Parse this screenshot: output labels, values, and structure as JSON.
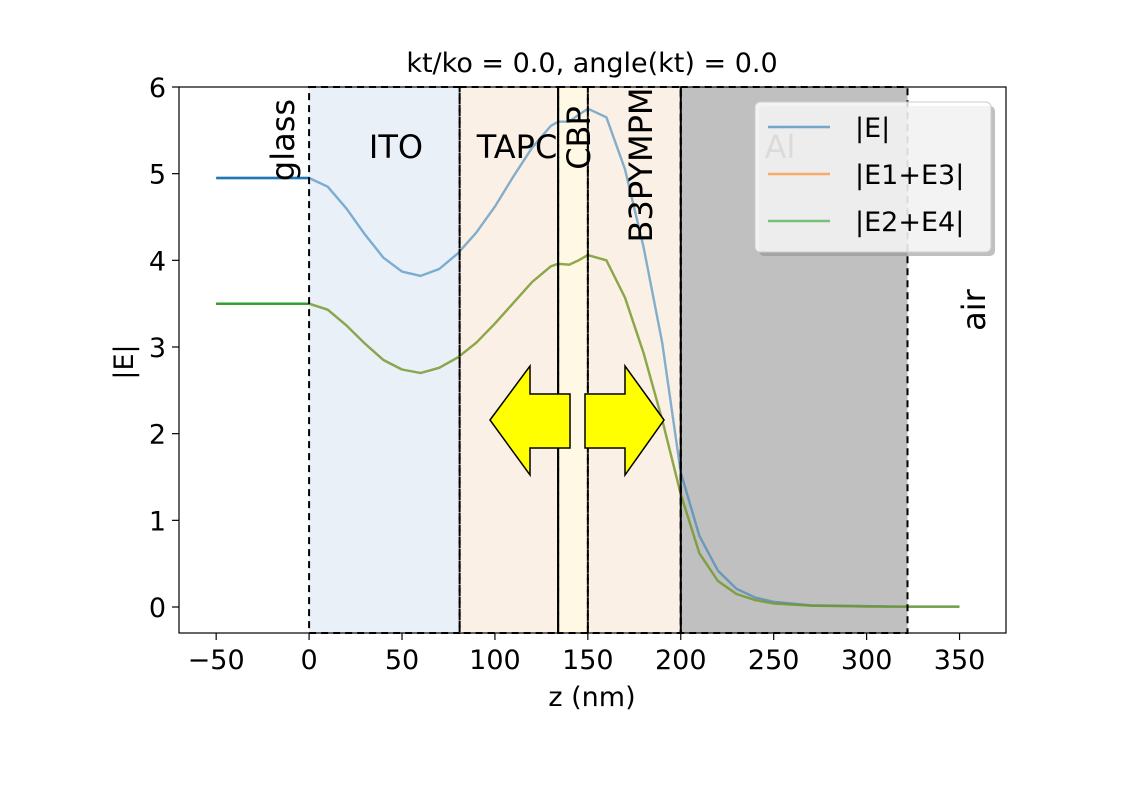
{
  "chart_data": {
    "type": "line",
    "title": "kt/ko = 0.0, angle(kt) = 0.0",
    "xlabel": "z (nm)",
    "ylabel": "|E|",
    "xlim": [
      -70,
      375
    ],
    "ylim": [
      -0.3,
      6.0
    ],
    "xticks": [
      -50,
      0,
      50,
      100,
      150,
      200,
      250,
      300,
      350
    ],
    "xtick_labels": [
      "−50",
      "0",
      "50",
      "100",
      "150",
      "200",
      "250",
      "300",
      "350"
    ],
    "yticks": [
      0,
      1,
      2,
      3,
      4,
      5,
      6
    ],
    "ytick_labels": [
      "0",
      "1",
      "2",
      "3",
      "4",
      "5",
      "6"
    ],
    "grid": false,
    "legend": "top-right",
    "layers": [
      {
        "name": "glass",
        "z_start": null,
        "z_end": 0,
        "color": null,
        "label_rotated": true
      },
      {
        "name": "ITO",
        "z_start": 0,
        "z_end": 81,
        "color": "#eaf0f8",
        "label_rotated": false
      },
      {
        "name": "TAPC",
        "z_start": 81,
        "z_end": 134,
        "color": "#fbf0e6",
        "label_rotated": false
      },
      {
        "name": "CBP",
        "z_start": 134,
        "z_end": 150,
        "color": "#fff8e4",
        "label_rotated": true
      },
      {
        "name": "B3PYMPM",
        "z_start": 150,
        "z_end": 200,
        "color": "#fbf0e6",
        "label_rotated": true
      },
      {
        "name": "Al",
        "z_start": 200,
        "z_end": 322,
        "color": "#c0c0c0",
        "label_rotated": false
      },
      {
        "name": "air",
        "z_start": 322,
        "z_end": null,
        "color": null,
        "label_rotated": true
      }
    ],
    "series": [
      {
        "name": "|E|",
        "color": "#1f77b4",
        "points": [
          [
            -50,
            4.95
          ],
          [
            -20,
            4.95
          ],
          [
            0,
            4.95
          ],
          [
            10,
            4.85
          ],
          [
            20,
            4.6
          ],
          [
            30,
            4.3
          ],
          [
            40,
            4.03
          ],
          [
            50,
            3.87
          ],
          [
            60,
            3.82
          ],
          [
            70,
            3.9
          ],
          [
            80,
            4.08
          ],
          [
            90,
            4.32
          ],
          [
            100,
            4.62
          ],
          [
            110,
            4.97
          ],
          [
            120,
            5.3
          ],
          [
            130,
            5.55
          ],
          [
            134,
            5.6
          ],
          [
            140,
            5.6
          ],
          [
            145,
            5.68
          ],
          [
            150,
            5.75
          ],
          [
            160,
            5.65
          ],
          [
            170,
            5.05
          ],
          [
            180,
            4.15
          ],
          [
            190,
            3.05
          ],
          [
            200,
            1.55
          ],
          [
            210,
            0.82
          ],
          [
            220,
            0.42
          ],
          [
            230,
            0.21
          ],
          [
            240,
            0.11
          ],
          [
            250,
            0.06
          ],
          [
            270,
            0.02
          ],
          [
            300,
            0.01
          ],
          [
            320,
            0.005
          ],
          [
            350,
            0.005
          ]
        ]
      },
      {
        "name": "|E1+E3|",
        "color": "#ff7f0e",
        "points": [
          [
            -50,
            3.5
          ],
          [
            -20,
            3.5
          ],
          [
            0,
            3.5
          ],
          [
            10,
            3.43
          ],
          [
            20,
            3.25
          ],
          [
            30,
            3.04
          ],
          [
            40,
            2.85
          ],
          [
            50,
            2.74
          ],
          [
            60,
            2.7
          ],
          [
            70,
            2.76
          ],
          [
            80,
            2.88
          ],
          [
            90,
            3.05
          ],
          [
            100,
            3.27
          ],
          [
            110,
            3.51
          ],
          [
            120,
            3.75
          ],
          [
            130,
            3.93
          ],
          [
            134,
            3.96
          ],
          [
            140,
            3.95
          ],
          [
            145,
            4.0
          ],
          [
            150,
            4.06
          ],
          [
            160,
            4.0
          ],
          [
            170,
            3.57
          ],
          [
            180,
            2.93
          ],
          [
            190,
            2.16
          ],
          [
            200,
            1.3
          ],
          [
            210,
            0.62
          ],
          [
            220,
            0.3
          ],
          [
            230,
            0.15
          ],
          [
            240,
            0.08
          ],
          [
            250,
            0.04
          ],
          [
            270,
            0.015
          ],
          [
            300,
            0.005
          ],
          [
            320,
            0.003
          ],
          [
            350,
            0.003
          ]
        ]
      },
      {
        "name": "|E2+E4|",
        "color": "#2ca02c",
        "points": [
          [
            -50,
            3.5
          ],
          [
            -20,
            3.5
          ],
          [
            0,
            3.5
          ],
          [
            10,
            3.43
          ],
          [
            20,
            3.25
          ],
          [
            30,
            3.04
          ],
          [
            40,
            2.85
          ],
          [
            50,
            2.74
          ],
          [
            60,
            2.7
          ],
          [
            70,
            2.76
          ],
          [
            80,
            2.88
          ],
          [
            90,
            3.05
          ],
          [
            100,
            3.27
          ],
          [
            110,
            3.51
          ],
          [
            120,
            3.75
          ],
          [
            130,
            3.93
          ],
          [
            134,
            3.96
          ],
          [
            140,
            3.95
          ],
          [
            145,
            4.0
          ],
          [
            150,
            4.06
          ],
          [
            160,
            4.0
          ],
          [
            170,
            3.57
          ],
          [
            180,
            2.93
          ],
          [
            190,
            2.16
          ],
          [
            200,
            1.3
          ],
          [
            210,
            0.62
          ],
          [
            220,
            0.3
          ],
          [
            230,
            0.15
          ],
          [
            240,
            0.08
          ],
          [
            250,
            0.04
          ],
          [
            270,
            0.015
          ],
          [
            300,
            0.005
          ],
          [
            320,
            0.003
          ],
          [
            350,
            0.003
          ]
        ]
      }
    ],
    "annotations": [
      {
        "type": "arrow",
        "direction": "left",
        "color": "#ffff00"
      },
      {
        "type": "arrow",
        "direction": "right",
        "color": "#ffff00"
      }
    ]
  }
}
